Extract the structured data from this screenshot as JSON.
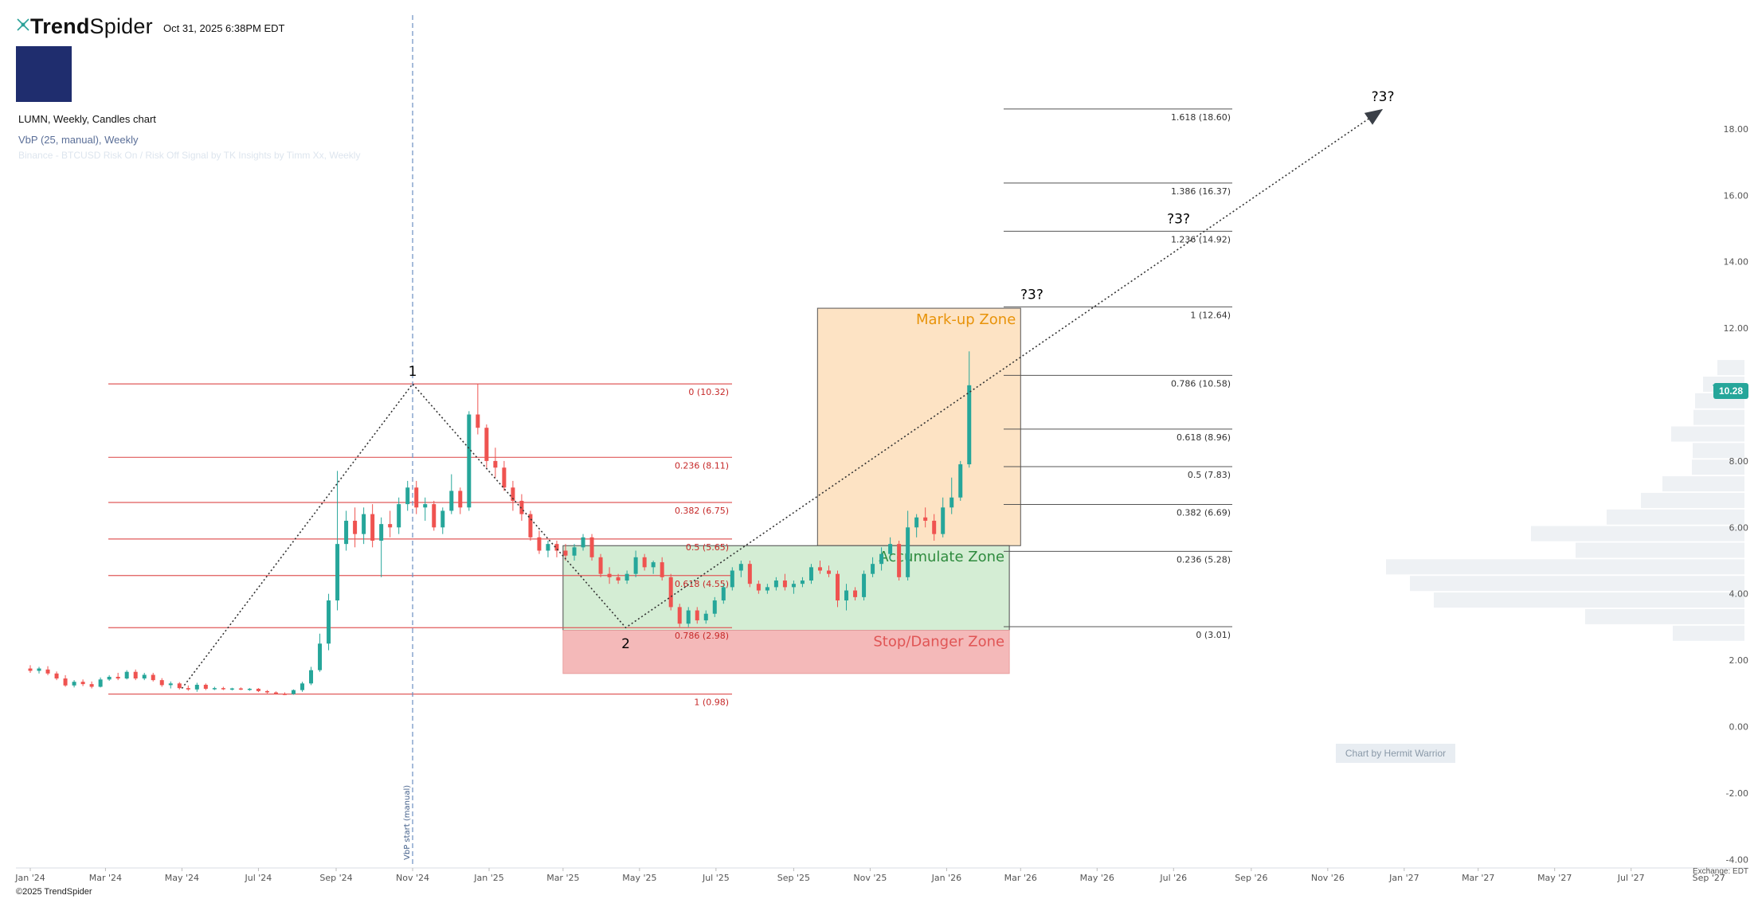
{
  "header": {
    "brand_bold": "Trend",
    "brand_light": "Spider",
    "timestamp": "Oct 31, 2025 6:38PM EDT",
    "symbol_title": "LUMN, Weekly, Candles chart",
    "indicator_1": "VbP (25, manual), Weekly",
    "indicator_2": "Binance - BTCUSD Risk On / Risk Off Signal by TK Insights by Timm Xx, Weekly"
  },
  "footer": {
    "copyright": "©2025 TrendSpider",
    "exchange": "Exchange: EDT",
    "watermark": "Chart by Hermit Warrior"
  },
  "colors": {
    "up": "#26a69a",
    "down": "#ef5350",
    "fib_red": "#e05a5a",
    "fib_grey": "#555555",
    "accumulate_fill": "#d4edd4",
    "markup_fill": "#fde3c4",
    "danger_fill": "#f4b9b9",
    "vbp": "#eef1f4"
  },
  "chart_data": {
    "type": "candlestick",
    "title": "LUMN, Weekly, Candles chart",
    "last_price": "10.28",
    "ylim": [
      -4,
      19.5
    ],
    "y_ticks": [
      "-4.00",
      "-2.00",
      "0.00",
      "2.00",
      "4.00",
      "6.00",
      "8.00",
      "10.00",
      "12.00",
      "14.00",
      "16.00",
      "18.00"
    ],
    "x_range": [
      "2024-01-01",
      "2027-09-15"
    ],
    "x_ticks": [
      {
        "label": "Jan '24",
        "date": "2024-01-01"
      },
      {
        "label": "Mar '24",
        "date": "2024-03-01"
      },
      {
        "label": "May '24",
        "date": "2024-05-01"
      },
      {
        "label": "Jul '24",
        "date": "2024-07-01"
      },
      {
        "label": "Sep '24",
        "date": "2024-09-01"
      },
      {
        "label": "Nov '24",
        "date": "2024-11-01"
      },
      {
        "label": "Jan '25",
        "date": "2025-01-01"
      },
      {
        "label": "Mar '25",
        "date": "2025-03-01"
      },
      {
        "label": "May '25",
        "date": "2025-05-01"
      },
      {
        "label": "Jul '25",
        "date": "2025-07-01"
      },
      {
        "label": "Sep '25",
        "date": "2025-09-01"
      },
      {
        "label": "Nov '25",
        "date": "2025-11-01"
      },
      {
        "label": "Jan '26",
        "date": "2026-01-01"
      },
      {
        "label": "Mar '26",
        "date": "2026-03-01"
      },
      {
        "label": "May '26",
        "date": "2026-05-01"
      },
      {
        "label": "Jul '26",
        "date": "2026-07-01"
      },
      {
        "label": "Sep '26",
        "date": "2026-09-01"
      },
      {
        "label": "Nov '26",
        "date": "2026-11-01"
      },
      {
        "label": "Jan '27",
        "date": "2027-01-01"
      },
      {
        "label": "Mar '27",
        "date": "2027-03-01"
      },
      {
        "label": "May '27",
        "date": "2027-05-01"
      },
      {
        "label": "Jul '27",
        "date": "2027-07-01"
      },
      {
        "label": "Sep '27",
        "date": "2027-09-01"
      }
    ],
    "candles": [
      {
        "d": "2024-01-01",
        "o": 1.75,
        "h": 1.85,
        "l": 1.62,
        "c": 1.68
      },
      {
        "d": "2024-01-08",
        "o": 1.68,
        "h": 1.8,
        "l": 1.6,
        "c": 1.75
      },
      {
        "d": "2024-01-15",
        "o": 1.72,
        "h": 1.82,
        "l": 1.55,
        "c": 1.6
      },
      {
        "d": "2024-01-22",
        "o": 1.6,
        "h": 1.66,
        "l": 1.4,
        "c": 1.45
      },
      {
        "d": "2024-01-29",
        "o": 1.45,
        "h": 1.55,
        "l": 1.2,
        "c": 1.24
      },
      {
        "d": "2024-02-05",
        "o": 1.24,
        "h": 1.4,
        "l": 1.18,
        "c": 1.35
      },
      {
        "d": "2024-02-12",
        "o": 1.35,
        "h": 1.42,
        "l": 1.22,
        "c": 1.28
      },
      {
        "d": "2024-02-19",
        "o": 1.28,
        "h": 1.36,
        "l": 1.15,
        "c": 1.2
      },
      {
        "d": "2024-02-26",
        "o": 1.2,
        "h": 1.48,
        "l": 1.18,
        "c": 1.42
      },
      {
        "d": "2024-03-04",
        "o": 1.42,
        "h": 1.55,
        "l": 1.38,
        "c": 1.5
      },
      {
        "d": "2024-03-11",
        "o": 1.5,
        "h": 1.62,
        "l": 1.4,
        "c": 1.45
      },
      {
        "d": "2024-03-18",
        "o": 1.45,
        "h": 1.7,
        "l": 1.42,
        "c": 1.65
      },
      {
        "d": "2024-03-25",
        "o": 1.65,
        "h": 1.72,
        "l": 1.4,
        "c": 1.45
      },
      {
        "d": "2024-04-01",
        "o": 1.45,
        "h": 1.62,
        "l": 1.4,
        "c": 1.56
      },
      {
        "d": "2024-04-08",
        "o": 1.56,
        "h": 1.62,
        "l": 1.36,
        "c": 1.4
      },
      {
        "d": "2024-04-15",
        "o": 1.4,
        "h": 1.46,
        "l": 1.2,
        "c": 1.25
      },
      {
        "d": "2024-04-22",
        "o": 1.25,
        "h": 1.36,
        "l": 1.15,
        "c": 1.3
      },
      {
        "d": "2024-04-29",
        "o": 1.3,
        "h": 1.34,
        "l": 1.12,
        "c": 1.16
      },
      {
        "d": "2024-05-06",
        "o": 1.16,
        "h": 1.24,
        "l": 1.08,
        "c": 1.12
      },
      {
        "d": "2024-05-13",
        "o": 1.12,
        "h": 1.32,
        "l": 1.05,
        "c": 1.26
      },
      {
        "d": "2024-05-20",
        "o": 1.26,
        "h": 1.3,
        "l": 1.1,
        "c": 1.14
      },
      {
        "d": "2024-05-27",
        "o": 1.14,
        "h": 1.2,
        "l": 1.1,
        "c": 1.16
      },
      {
        "d": "2024-06-03",
        "o": 1.16,
        "h": 1.2,
        "l": 1.1,
        "c": 1.13
      },
      {
        "d": "2024-06-10",
        "o": 1.13,
        "h": 1.17,
        "l": 1.09,
        "c": 1.15
      },
      {
        "d": "2024-06-17",
        "o": 1.15,
        "h": 1.18,
        "l": 1.1,
        "c": 1.12
      },
      {
        "d": "2024-06-24",
        "o": 1.12,
        "h": 1.16,
        "l": 1.08,
        "c": 1.14
      },
      {
        "d": "2024-07-01",
        "o": 1.14,
        "h": 1.16,
        "l": 1.04,
        "c": 1.07
      },
      {
        "d": "2024-07-08",
        "o": 1.07,
        "h": 1.1,
        "l": 1.0,
        "c": 1.03
      },
      {
        "d": "2024-07-15",
        "o": 1.03,
        "h": 1.06,
        "l": 0.97,
        "c": 0.99
      },
      {
        "d": "2024-07-22",
        "o": 0.99,
        "h": 1.03,
        "l": 0.95,
        "c": 0.98
      },
      {
        "d": "2024-07-29",
        "o": 0.98,
        "h": 1.12,
        "l": 0.96,
        "c": 1.1
      },
      {
        "d": "2024-08-05",
        "o": 1.1,
        "h": 1.35,
        "l": 1.05,
        "c": 1.3
      },
      {
        "d": "2024-08-12",
        "o": 1.3,
        "h": 1.8,
        "l": 1.25,
        "c": 1.7
      },
      {
        "d": "2024-08-19",
        "o": 1.7,
        "h": 2.8,
        "l": 1.65,
        "c": 2.5
      },
      {
        "d": "2024-08-26",
        "o": 2.5,
        "h": 4.0,
        "l": 2.3,
        "c": 3.8
      },
      {
        "d": "2024-09-02",
        "o": 3.8,
        "h": 7.7,
        "l": 3.5,
        "c": 5.5
      },
      {
        "d": "2024-09-09",
        "o": 5.5,
        "h": 6.5,
        "l": 5.3,
        "c": 6.2
      },
      {
        "d": "2024-09-16",
        "o": 6.2,
        "h": 6.6,
        "l": 5.4,
        "c": 5.8
      },
      {
        "d": "2024-09-23",
        "o": 5.8,
        "h": 6.6,
        "l": 5.5,
        "c": 6.4
      },
      {
        "d": "2024-09-30",
        "o": 6.4,
        "h": 6.7,
        "l": 5.4,
        "c": 5.6
      },
      {
        "d": "2024-10-07",
        "o": 5.6,
        "h": 6.3,
        "l": 4.5,
        "c": 6.1
      },
      {
        "d": "2024-10-14",
        "o": 6.1,
        "h": 6.5,
        "l": 5.7,
        "c": 6.0
      },
      {
        "d": "2024-10-21",
        "o": 6.0,
        "h": 6.9,
        "l": 5.8,
        "c": 6.7
      },
      {
        "d": "2024-10-28",
        "o": 6.7,
        "h": 7.4,
        "l": 6.5,
        "c": 7.2
      },
      {
        "d": "2024-11-04",
        "o": 7.2,
        "h": 7.4,
        "l": 6.4,
        "c": 6.6
      },
      {
        "d": "2024-11-11",
        "o": 6.6,
        "h": 6.9,
        "l": 6.2,
        "c": 6.7
      },
      {
        "d": "2024-11-18",
        "o": 6.7,
        "h": 6.8,
        "l": 5.9,
        "c": 6.0
      },
      {
        "d": "2024-11-25",
        "o": 6.0,
        "h": 6.6,
        "l": 5.8,
        "c": 6.5
      },
      {
        "d": "2024-12-02",
        "o": 6.5,
        "h": 7.6,
        "l": 6.4,
        "c": 7.1
      },
      {
        "d": "2024-12-09",
        "o": 7.1,
        "h": 7.2,
        "l": 6.4,
        "c": 6.6
      },
      {
        "d": "2024-12-16",
        "o": 6.6,
        "h": 9.5,
        "l": 6.5,
        "c": 9.4
      },
      {
        "d": "2024-12-23",
        "o": 9.4,
        "h": 10.32,
        "l": 8.8,
        "c": 9.0
      },
      {
        "d": "2024-12-30",
        "o": 9.0,
        "h": 9.1,
        "l": 7.8,
        "c": 8.0
      },
      {
        "d": "2025-01-06",
        "o": 8.0,
        "h": 8.4,
        "l": 7.5,
        "c": 7.8
      },
      {
        "d": "2025-01-13",
        "o": 7.8,
        "h": 8.0,
        "l": 7.1,
        "c": 7.2
      },
      {
        "d": "2025-01-20",
        "o": 7.2,
        "h": 7.4,
        "l": 6.5,
        "c": 6.8
      },
      {
        "d": "2025-01-27",
        "o": 6.8,
        "h": 7.0,
        "l": 6.2,
        "c": 6.4
      },
      {
        "d": "2025-02-03",
        "o": 6.4,
        "h": 6.5,
        "l": 5.6,
        "c": 5.7
      },
      {
        "d": "2025-02-10",
        "o": 5.7,
        "h": 5.9,
        "l": 5.2,
        "c": 5.3
      },
      {
        "d": "2025-02-17",
        "o": 5.3,
        "h": 5.6,
        "l": 5.1,
        "c": 5.5
      },
      {
        "d": "2025-02-24",
        "o": 5.5,
        "h": 5.6,
        "l": 5.1,
        "c": 5.3
      },
      {
        "d": "2025-03-03",
        "o": 5.3,
        "h": 5.5,
        "l": 5.0,
        "c": 5.15
      },
      {
        "d": "2025-03-10",
        "o": 5.15,
        "h": 5.5,
        "l": 5.0,
        "c": 5.4
      },
      {
        "d": "2025-03-17",
        "o": 5.4,
        "h": 5.8,
        "l": 5.3,
        "c": 5.7
      },
      {
        "d": "2025-03-24",
        "o": 5.7,
        "h": 5.8,
        "l": 5.0,
        "c": 5.1
      },
      {
        "d": "2025-03-31",
        "o": 5.1,
        "h": 5.2,
        "l": 4.5,
        "c": 4.6
      },
      {
        "d": "2025-04-07",
        "o": 4.6,
        "h": 4.8,
        "l": 4.3,
        "c": 4.5
      },
      {
        "d": "2025-04-14",
        "o": 4.5,
        "h": 4.6,
        "l": 4.3,
        "c": 4.4
      },
      {
        "d": "2025-04-21",
        "o": 4.4,
        "h": 4.7,
        "l": 4.3,
        "c": 4.6
      },
      {
        "d": "2025-04-28",
        "o": 4.6,
        "h": 5.3,
        "l": 4.5,
        "c": 5.1
      },
      {
        "d": "2025-05-05",
        "o": 5.1,
        "h": 5.2,
        "l": 4.7,
        "c": 4.8
      },
      {
        "d": "2025-05-12",
        "o": 4.8,
        "h": 5.0,
        "l": 4.6,
        "c": 4.95
      },
      {
        "d": "2025-05-19",
        "o": 4.95,
        "h": 5.1,
        "l": 4.4,
        "c": 4.5
      },
      {
        "d": "2025-05-26",
        "o": 4.5,
        "h": 4.6,
        "l": 3.5,
        "c": 3.6
      },
      {
        "d": "2025-06-02",
        "o": 3.6,
        "h": 3.7,
        "l": 3.0,
        "c": 3.1
      },
      {
        "d": "2025-06-09",
        "o": 3.1,
        "h": 3.6,
        "l": 3.0,
        "c": 3.5
      },
      {
        "d": "2025-06-16",
        "o": 3.5,
        "h": 3.6,
        "l": 3.1,
        "c": 3.2
      },
      {
        "d": "2025-06-23",
        "o": 3.2,
        "h": 3.5,
        "l": 3.1,
        "c": 3.4
      },
      {
        "d": "2025-06-30",
        "o": 3.4,
        "h": 3.9,
        "l": 3.3,
        "c": 3.8
      },
      {
        "d": "2025-07-07",
        "o": 3.8,
        "h": 4.3,
        "l": 3.7,
        "c": 4.2
      },
      {
        "d": "2025-07-14",
        "o": 4.2,
        "h": 4.8,
        "l": 4.1,
        "c": 4.7
      },
      {
        "d": "2025-07-21",
        "o": 4.7,
        "h": 5.0,
        "l": 4.5,
        "c": 4.9
      },
      {
        "d": "2025-07-28",
        "o": 4.9,
        "h": 5.0,
        "l": 4.2,
        "c": 4.3
      },
      {
        "d": "2025-08-04",
        "o": 4.3,
        "h": 4.4,
        "l": 4.0,
        "c": 4.1
      },
      {
        "d": "2025-08-11",
        "o": 4.1,
        "h": 4.3,
        "l": 4.0,
        "c": 4.2
      },
      {
        "d": "2025-08-18",
        "o": 4.2,
        "h": 4.5,
        "l": 4.1,
        "c": 4.4
      },
      {
        "d": "2025-08-25",
        "o": 4.4,
        "h": 4.6,
        "l": 4.1,
        "c": 4.2
      },
      {
        "d": "2025-09-01",
        "o": 4.2,
        "h": 4.4,
        "l": 4.0,
        "c": 4.3
      },
      {
        "d": "2025-09-08",
        "o": 4.3,
        "h": 4.5,
        "l": 4.2,
        "c": 4.4
      },
      {
        "d": "2025-09-15",
        "o": 4.4,
        "h": 4.9,
        "l": 4.3,
        "c": 4.8
      },
      {
        "d": "2025-09-22",
        "o": 4.8,
        "h": 5.0,
        "l": 4.6,
        "c": 4.7
      },
      {
        "d": "2025-09-29",
        "o": 4.7,
        "h": 4.85,
        "l": 4.5,
        "c": 4.6
      },
      {
        "d": "2025-10-06",
        "o": 4.6,
        "h": 4.7,
        "l": 3.6,
        "c": 3.8
      },
      {
        "d": "2025-10-13",
        "o": 3.8,
        "h": 4.3,
        "l": 3.5,
        "c": 4.1
      },
      {
        "d": "2025-10-20",
        "o": 4.1,
        "h": 4.2,
        "l": 3.8,
        "c": 3.9
      },
      {
        "d": "2025-10-27",
        "o": 3.9,
        "h": 4.7,
        "l": 3.8,
        "c": 4.6
      },
      {
        "d": "2025-11-03",
        "o": 4.6,
        "h": 5.1,
        "l": 4.5,
        "c": 4.9
      },
      {
        "d": "2025-11-10",
        "o": 4.9,
        "h": 5.4,
        "l": 4.7,
        "c": 5.2
      },
      {
        "d": "2025-11-17",
        "o": 5.2,
        "h": 5.7,
        "l": 5.0,
        "c": 5.5
      },
      {
        "d": "2025-11-24",
        "o": 5.5,
        "h": 5.6,
        "l": 4.4,
        "c": 4.5
      },
      {
        "d": "2025-12-01",
        "o": 4.5,
        "h": 6.5,
        "l": 4.4,
        "c": 6.0
      },
      {
        "d": "2025-12-08",
        "o": 6.0,
        "h": 6.4,
        "l": 5.7,
        "c": 6.3
      },
      {
        "d": "2025-12-15",
        "o": 6.3,
        "h": 6.6,
        "l": 6.0,
        "c": 6.2
      },
      {
        "d": "2025-12-22",
        "o": 6.2,
        "h": 6.4,
        "l": 5.6,
        "c": 5.8
      },
      {
        "d": "2025-12-29",
        "o": 5.8,
        "h": 6.9,
        "l": 5.7,
        "c": 6.6
      },
      {
        "d": "2026-01-05",
        "o": 6.6,
        "h": 7.5,
        "l": 6.4,
        "c": 6.9
      },
      {
        "d": "2026-01-12",
        "o": 6.9,
        "h": 8.0,
        "l": 6.8,
        "c": 7.9
      },
      {
        "d": "2026-01-19",
        "o": 7.9,
        "h": 11.3,
        "l": 7.8,
        "c": 10.28
      }
    ],
    "fib_retracement_left": [
      {
        "level": "0",
        "price": 10.32,
        "label": "0 (10.32)"
      },
      {
        "level": "0.236",
        "price": 8.11,
        "label": "0.236 (8.11)"
      },
      {
        "level": "0.382",
        "price": 6.75,
        "label": "0.382 (6.75)"
      },
      {
        "level": "0.5",
        "price": 5.65,
        "label": "0.5 (5.65)"
      },
      {
        "level": "0.618",
        "price": 4.55,
        "label": "0.618 (4.55)"
      },
      {
        "level": "0.786",
        "price": 2.98,
        "label": "0.786 (2.98)"
      },
      {
        "level": "1",
        "price": 0.98,
        "label": "1 (0.98)"
      }
    ],
    "fib_extension_right": [
      {
        "level": "1.618",
        "price": 18.6,
        "label": "1.618 (18.60)"
      },
      {
        "level": "1.386",
        "price": 16.37,
        "label": "1.386 (16.37)"
      },
      {
        "level": "1.236",
        "price": 14.92,
        "label": "1.236 (14.92)"
      },
      {
        "level": "1",
        "price": 12.64,
        "label": "1 (12.64)"
      },
      {
        "level": "0.786",
        "price": 10.58,
        "label": "0.786 (10.58)"
      },
      {
        "level": "0.618",
        "price": 8.96,
        "label": "0.618 (8.96)"
      },
      {
        "level": "0.5",
        "price": 7.83,
        "label": "0.5 (7.83)"
      },
      {
        "level": "0.382",
        "price": 6.69,
        "label": "0.382 (6.69)"
      },
      {
        "level": "0.236",
        "price": 5.28,
        "label": "0.236 (5.28)"
      },
      {
        "level": "0",
        "price": 3.01,
        "label": "0 (3.01)"
      }
    ],
    "zones": [
      {
        "name": "Mark-up Zone",
        "from": "2025-09-20",
        "to": "2026-03-01",
        "low": 5.45,
        "high": 12.6,
        "color": "#e8930a"
      },
      {
        "name": "Accumulate Zone",
        "from": "2025-03-01",
        "to": "2026-02-20",
        "low": 2.9,
        "high": 5.45,
        "color": "#2e8b3e"
      },
      {
        "name": "Stop/Danger Zone",
        "from": "2025-03-01",
        "to": "2026-02-20",
        "low": 1.6,
        "high": 2.9,
        "color": "#e05555"
      }
    ],
    "annotations": [
      {
        "text": "1",
        "date": "2024-11-01",
        "price": 10.32
      },
      {
        "text": "2",
        "date": "2025-04-20",
        "price": 2.98
      },
      {
        "text": "?3?",
        "date": "2026-03-10",
        "price": 12.64
      },
      {
        "text": "?3?",
        "date": "2026-07-05",
        "price": 14.92
      },
      {
        "text": "?3?",
        "date": "2026-12-15",
        "price": 18.6
      }
    ],
    "vbp_start": {
      "date": "2024-11-01",
      "label": "VbP start (manual)"
    },
    "path_points": [
      {
        "date": "2024-05-01",
        "price": 1.15
      },
      {
        "date": "2024-11-01",
        "price": 10.32
      },
      {
        "date": "2025-04-20",
        "price": 2.98
      },
      {
        "date": "2026-12-15",
        "price": 18.6
      }
    ],
    "volume_profile": [
      {
        "price": 10.8,
        "width": 0.34
      },
      {
        "price": 10.3,
        "width": 0.52
      },
      {
        "price": 9.8,
        "width": 0.62
      },
      {
        "price": 9.3,
        "width": 0.64
      },
      {
        "price": 8.8,
        "width": 0.92
      },
      {
        "price": 8.3,
        "width": 0.65
      },
      {
        "price": 7.8,
        "width": 0.66
      },
      {
        "price": 7.3,
        "width": 1.03
      },
      {
        "price": 6.8,
        "width": 1.3
      },
      {
        "price": 6.3,
        "width": 1.73
      },
      {
        "price": 5.8,
        "width": 2.68
      },
      {
        "price": 5.3,
        "width": 2.12
      },
      {
        "price": 4.8,
        "width": 4.5
      },
      {
        "price": 4.3,
        "width": 4.2
      },
      {
        "price": 3.8,
        "width": 3.9
      },
      {
        "price": 3.3,
        "width": 2.0
      },
      {
        "price": 2.8,
        "width": 0.9
      }
    ]
  }
}
